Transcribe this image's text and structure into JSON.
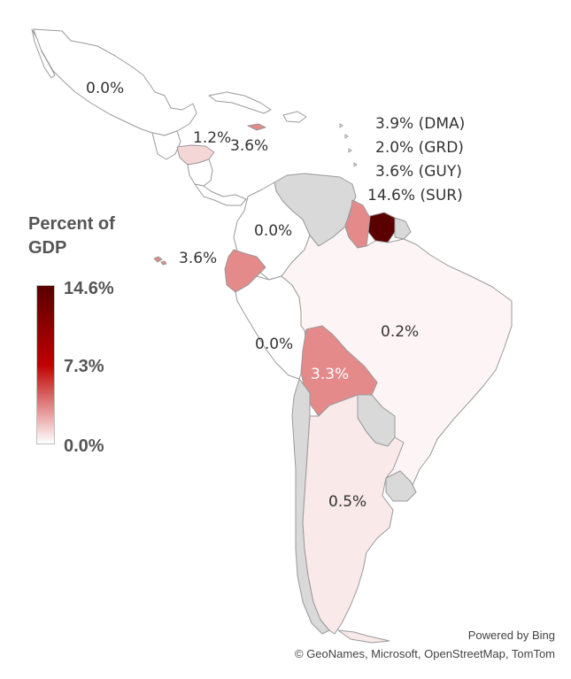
{
  "legend": {
    "title_line1": "Percent of",
    "title_line2": "GDP",
    "max": "14.6%",
    "mid": "7.3%",
    "min": "0.0%",
    "gradient_colors": [
      "#5a0000",
      "#c00000",
      "#ffffff"
    ]
  },
  "labels": {
    "mexico": "0.0%",
    "honduras": "1.2%",
    "jamaica": "3.6%",
    "dominica": "3.9% (DMA)",
    "grenada": "2.0% (GRD)",
    "guyana": "3.6% (GUY)",
    "suriname": "14.6% (SUR)",
    "colombia": "0.0%",
    "galapagos_ecuador": "3.6%",
    "brazil": "0.2%",
    "peru": "0.0%",
    "bolivia": "3.3%",
    "argentina": "0.5%"
  },
  "colors": {
    "no_data": "#d9d9d9",
    "zero": "#ffffff",
    "brazil": "#fdf5f5",
    "argentina": "#f9e9e9",
    "honduras": "#f5d6d6",
    "mid": "#e48a8a",
    "suriname": "#5a0000",
    "border": "#9a9a9a"
  },
  "credits": {
    "line1": "Powered by Bing",
    "line2": "© GeoNames, Microsoft, OpenStreetMap, TomTom"
  }
}
